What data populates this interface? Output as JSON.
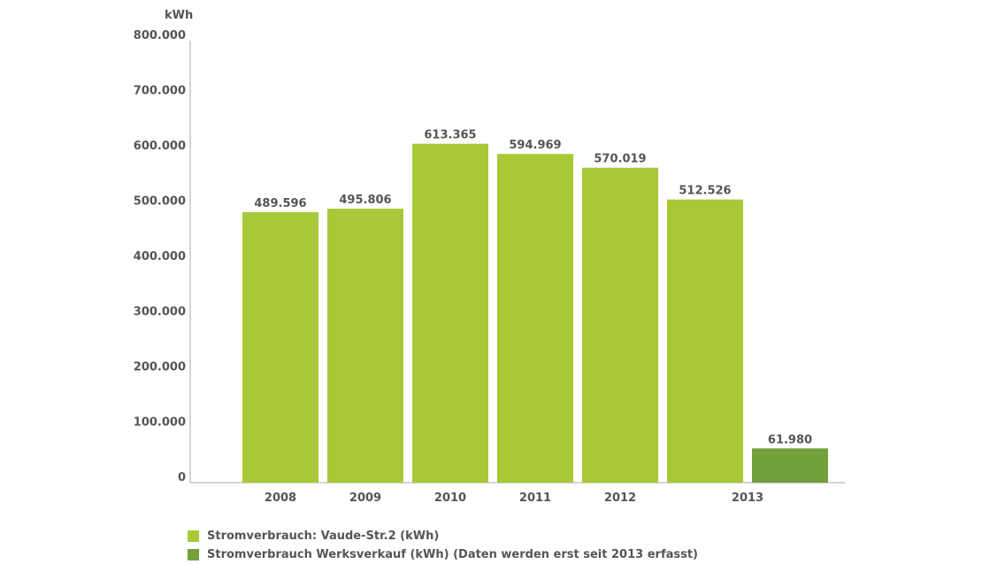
{
  "colors": {
    "series1": "#a8c837",
    "series2": "#72a03a",
    "axis": "#aaaaaa",
    "text": "#555555"
  },
  "chart_data": {
    "type": "bar",
    "ylabel": "kWh",
    "ylim": [
      0,
      800000
    ],
    "yticks": [
      0,
      100000,
      200000,
      300000,
      400000,
      500000,
      600000,
      700000,
      800000
    ],
    "ytick_labels": [
      "0",
      "100.000",
      "200.000",
      "300.000",
      "400.000",
      "500.000",
      "600.000",
      "700.000",
      "800.000"
    ],
    "categories": [
      "2008",
      "2009",
      "2010",
      "2011",
      "2012",
      "2013"
    ],
    "grid": false,
    "legend_position": "bottom-left",
    "series": [
      {
        "name": "Stromverbrauch: Vaude-Str.2 (kWh)",
        "values": [
          489596,
          495806,
          613365,
          594969,
          570019,
          512526
        ],
        "labels": [
          "489.596",
          "495.806",
          "613.365",
          "594.969",
          "570.019",
          "512.526"
        ]
      },
      {
        "name": "Stromverbrauch Werksverkauf (kWh) (Daten werden erst seit 2013 erfasst)",
        "values": [
          null,
          null,
          null,
          null,
          null,
          61980
        ],
        "labels": [
          null,
          null,
          null,
          null,
          null,
          "61.980"
        ]
      }
    ]
  }
}
